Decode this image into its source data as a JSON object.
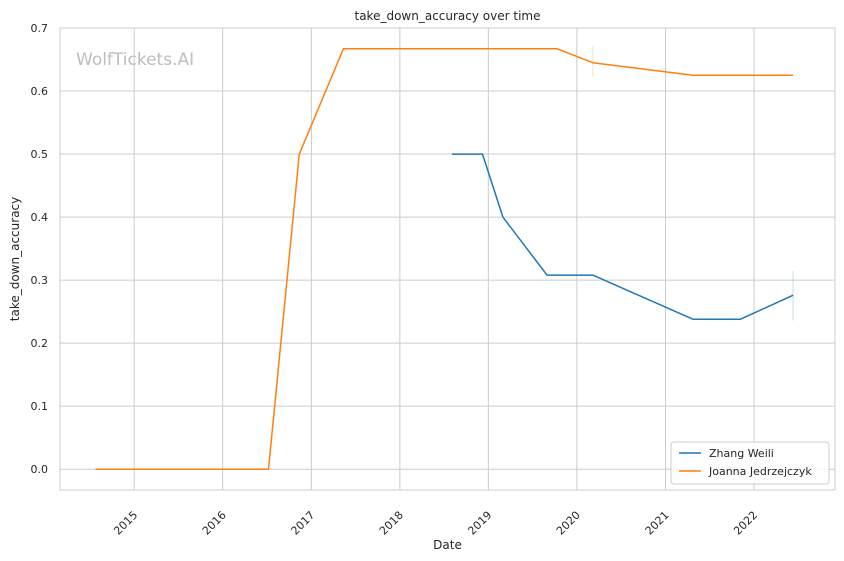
{
  "chart_data": {
    "type": "line",
    "title": "take_down_accuracy over time",
    "xlabel": "Date",
    "ylabel": "take_down_accuracy",
    "watermark": "WolfTickets.AI",
    "xlim": [
      "2014-03-01",
      "2022-12-01"
    ],
    "ylim": [
      -0.033,
      0.7
    ],
    "x_ticks": [
      "2015-01-01",
      "2016-01-01",
      "2017-01-01",
      "2018-01-01",
      "2019-01-01",
      "2020-01-01",
      "2021-01-01",
      "2022-01-01"
    ],
    "x_tick_labels": [
      "2015",
      "2016",
      "2017",
      "2018",
      "2019",
      "2020",
      "2021",
      "2022"
    ],
    "y_ticks": [
      0.0,
      0.1,
      0.2,
      0.3,
      0.4,
      0.5,
      0.6,
      0.7
    ],
    "y_tick_labels": [
      "0.0",
      "0.1",
      "0.2",
      "0.3",
      "0.4",
      "0.5",
      "0.6",
      "0.7"
    ],
    "grid": true,
    "legend_position": "bottom-right",
    "series": [
      {
        "name": "Zhang Weili",
        "color": "#1f77b4",
        "x": [
          "2018-08-04",
          "2018-12-08",
          "2019-03-02",
          "2019-08-31",
          "2020-03-07",
          "2021-04-24",
          "2021-11-06",
          "2022-06-11"
        ],
        "y": [
          0.5,
          0.5,
          0.4,
          0.308,
          0.308,
          0.238,
          0.238,
          0.276
        ]
      },
      {
        "name": "Joanna Jedrzejczyk",
        "color": "#ff7f0e",
        "x": [
          "2014-07-26",
          "2016-07-08",
          "2016-11-12",
          "2017-05-13",
          "2019-10-12",
          "2020-03-07",
          "2021-04-24",
          "2022-06-11"
        ],
        "y": [
          0.0,
          0.0,
          0.5,
          0.667,
          0.667,
          0.645,
          0.625,
          0.625
        ]
      }
    ]
  }
}
